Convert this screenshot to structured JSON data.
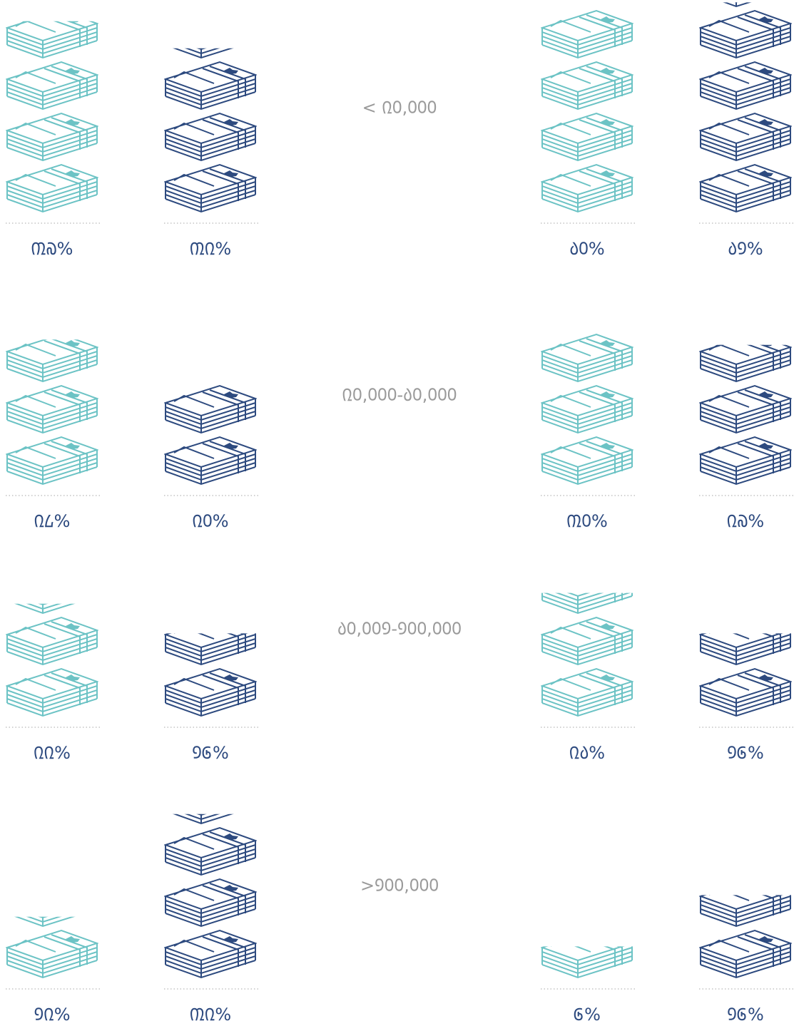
{
  "chart_data": {
    "type": "pictograph",
    "categories": [
      "< ᠒᠐,᠐᠐᠐",
      "᠒᠐,᠐᠐᠐-᠔᠐,᠐᠐᠐",
      "᠔᠐,᠐᠐᠑-᠑᠐᠐,᠐᠐᠐",
      ">᠑᠐᠐,᠐᠐᠐"
    ],
    "series": [
      {
        "color": "#6cc3c5",
        "values": [
          37,
          28,
          22,
          12
        ],
        "value_labels": [
          "᠓᠗%",
          "᠒᠘%",
          "᠒᠒%",
          "᠑᠒%"
        ]
      },
      {
        "color": "#2d4a7f",
        "values": [
          32,
          20,
          16,
          32
        ],
        "value_labels": [
          "᠓᠒%",
          "᠒᠐%",
          "᠑᠖%",
          "᠓᠒%"
        ]
      },
      {
        "color": "#6cc3c5",
        "values": [
          40,
          30,
          24,
          6
        ],
        "value_labels": [
          "᠔᠐%",
          "᠓᠐%",
          "᠒᠔%",
          "᠖%"
        ]
      },
      {
        "color": "#2d4a7f",
        "values": [
          41,
          27,
          16,
          16
        ],
        "value_labels": [
          "᠔᠑%",
          "᠒᠗%",
          "᠑᠖%",
          "᠑᠖%"
        ]
      }
    ]
  }
}
